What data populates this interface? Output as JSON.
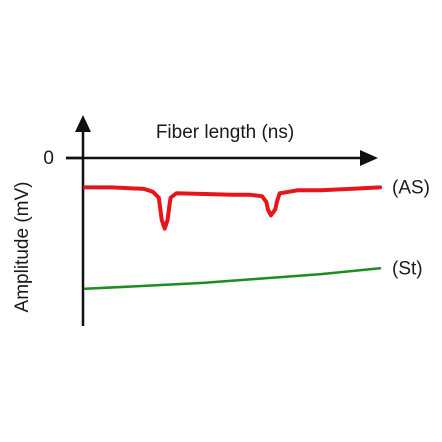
{
  "chart_data": {
    "type": "line",
    "xlabel": "Fiber length (ns)",
    "ylabel": "Amplitude (mV)",
    "y_zero_tick": "0",
    "grid": false,
    "legend": "none",
    "series": [
      {
        "name": "(AS)",
        "color": "#e8141c",
        "x": [
          0,
          0.09,
          0.2,
          0.23,
          0.25,
          0.255,
          0.26,
          0.27,
          0.28,
          0.285,
          0.29,
          0.31,
          0.5,
          0.56,
          0.6,
          0.615,
          0.62,
          0.63,
          0.645,
          0.65,
          0.66,
          0.72,
          0.8,
          0.9,
          1.0
        ],
        "y": [
          -0.2,
          -0.2,
          -0.21,
          -0.23,
          -0.27,
          -0.34,
          -0.42,
          -0.48,
          -0.42,
          -0.34,
          -0.27,
          -0.24,
          -0.25,
          -0.25,
          -0.26,
          -0.3,
          -0.35,
          -0.39,
          -0.35,
          -0.3,
          -0.24,
          -0.22,
          -0.22,
          -0.21,
          -0.2
        ]
      },
      {
        "name": "(St)",
        "color": "#1f8c1f",
        "x": [
          0,
          0.2,
          0.4,
          0.6,
          0.8,
          1.0
        ],
        "y": [
          -0.89,
          -0.87,
          -0.85,
          -0.82,
          -0.79,
          -0.75
        ]
      }
    ]
  }
}
